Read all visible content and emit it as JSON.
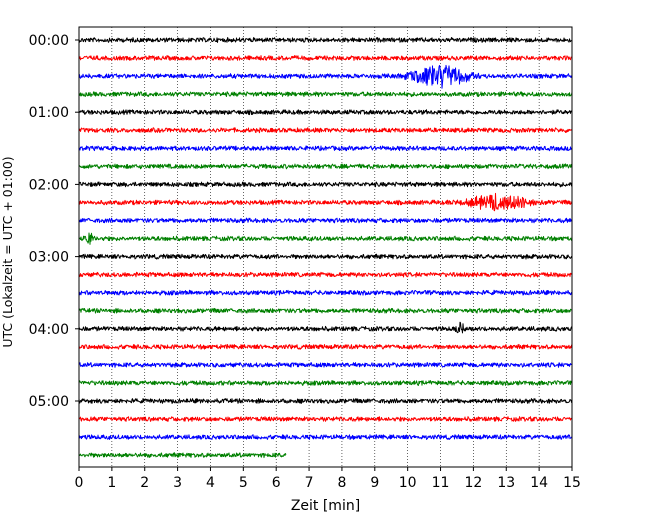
{
  "chart_data": {
    "type": "line",
    "title": "",
    "xlabel": "Zeit  [min]",
    "ylabel": "UTC (Lokalzeit = UTC + 01:00)",
    "xlim": [
      0,
      15
    ],
    "x_ticks": [
      0,
      1,
      2,
      3,
      4,
      5,
      6,
      7,
      8,
      9,
      10,
      11,
      12,
      13,
      14,
      15
    ],
    "y_tick_labels": [
      "00:00",
      "01:00",
      "02:00",
      "03:00",
      "04:00",
      "05:00"
    ],
    "trace_interval_min": 15,
    "grid": "vertical dotted lines at each minute",
    "trace_colors": [
      "#000000",
      "#ff0000",
      "#0000ff",
      "#008000"
    ],
    "traces": [
      {
        "start_utc": "00:00",
        "color": "#000000",
        "end_min": 15,
        "events": []
      },
      {
        "start_utc": "00:15",
        "color": "#ff0000",
        "end_min": 15,
        "events": []
      },
      {
        "start_utc": "00:30",
        "color": "#0000ff",
        "end_min": 15,
        "events": [
          {
            "t_min": 11.0,
            "amplitude": 11,
            "duration_min": 2.8
          }
        ]
      },
      {
        "start_utc": "00:45",
        "color": "#008000",
        "end_min": 15,
        "events": []
      },
      {
        "start_utc": "01:00",
        "color": "#000000",
        "end_min": 15,
        "events": []
      },
      {
        "start_utc": "01:15",
        "color": "#ff0000",
        "end_min": 15,
        "events": []
      },
      {
        "start_utc": "01:30",
        "color": "#0000ff",
        "end_min": 15,
        "events": []
      },
      {
        "start_utc": "01:45",
        "color": "#008000",
        "end_min": 15,
        "events": []
      },
      {
        "start_utc": "02:00",
        "color": "#000000",
        "end_min": 15,
        "events": []
      },
      {
        "start_utc": "02:15",
        "color": "#ff0000",
        "end_min": 15,
        "events": [
          {
            "t_min": 12.8,
            "amplitude": 8,
            "duration_min": 3.0
          }
        ]
      },
      {
        "start_utc": "02:30",
        "color": "#0000ff",
        "end_min": 15,
        "events": []
      },
      {
        "start_utc": "02:45",
        "color": "#008000",
        "end_min": 15,
        "events": [
          {
            "t_min": 0.3,
            "amplitude": 6,
            "duration_min": 0.4
          }
        ]
      },
      {
        "start_utc": "03:00",
        "color": "#000000",
        "end_min": 15,
        "events": []
      },
      {
        "start_utc": "03:15",
        "color": "#ff0000",
        "end_min": 15,
        "events": []
      },
      {
        "start_utc": "03:30",
        "color": "#0000ff",
        "end_min": 15,
        "events": []
      },
      {
        "start_utc": "03:45",
        "color": "#008000",
        "end_min": 15,
        "events": []
      },
      {
        "start_utc": "04:00",
        "color": "#000000",
        "end_min": 15,
        "events": [
          {
            "t_min": 11.6,
            "amplitude": 6,
            "duration_min": 0.4
          }
        ]
      },
      {
        "start_utc": "04:15",
        "color": "#ff0000",
        "end_min": 15,
        "events": []
      },
      {
        "start_utc": "04:30",
        "color": "#0000ff",
        "end_min": 15,
        "events": []
      },
      {
        "start_utc": "04:45",
        "color": "#008000",
        "end_min": 15,
        "events": []
      },
      {
        "start_utc": "05:00",
        "color": "#000000",
        "end_min": 15,
        "events": []
      },
      {
        "start_utc": "05:15",
        "color": "#ff0000",
        "end_min": 15,
        "events": []
      },
      {
        "start_utc": "05:30",
        "color": "#0000ff",
        "end_min": 15,
        "events": []
      },
      {
        "start_utc": "05:45",
        "color": "#008000",
        "end_min": 6.3,
        "events": []
      }
    ]
  }
}
